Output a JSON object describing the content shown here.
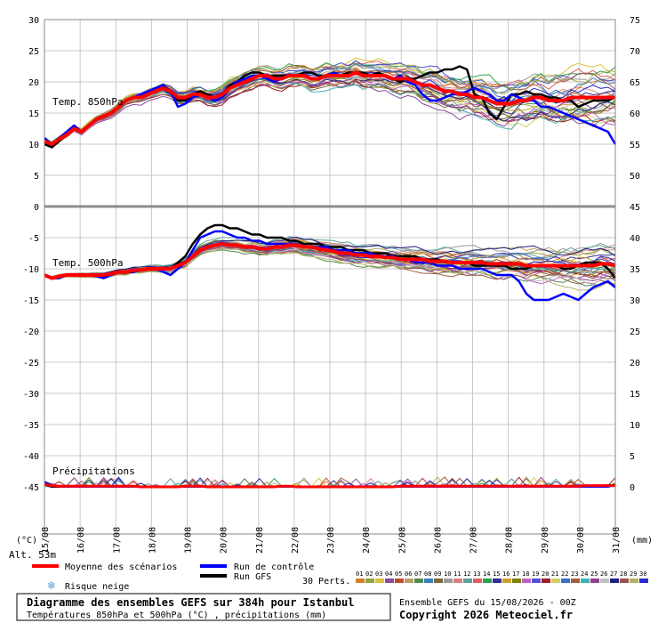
{
  "chart_data": {
    "type": "line",
    "title": "Diagramme des ensembles GEFS sur 384h pour Istanbul",
    "subtitle": "Températures 850hPa et 500hPa (°C) , précipitations (mm)",
    "run_info": "Ensemble GEFS du 15/08/2026 - 00Z",
    "copyright": "Copyright 2026 Meteociel.fr",
    "altitude_label": "Alt. 53m",
    "left_unit": "(°C)",
    "right_unit": "(mm)",
    "x_tick_labels": [
      "15/08",
      "16/08",
      "17/08",
      "18/08",
      "19/08",
      "20/08",
      "21/08",
      "22/08",
      "23/08",
      "24/08",
      "25/08",
      "26/08",
      "27/08",
      "28/08",
      "29/08",
      "30/08",
      "31/08"
    ],
    "left_ticks": [
      30,
      25,
      20,
      15,
      10,
      5,
      0,
      -5,
      -10,
      -15,
      -20,
      -25,
      -30,
      -35,
      -40,
      -45
    ],
    "right_ticks": [
      75,
      70,
      65,
      60,
      55,
      50,
      45,
      40,
      35,
      30,
      25,
      20,
      15,
      10,
      5,
      0
    ],
    "panels": {
      "t850": {
        "label": "Temp. 850hPa",
        "ylim": [
          0,
          30
        ]
      },
      "t500": {
        "label": "Temp. 500hPa",
        "ylim": [
          -50,
          0
        ]
      },
      "precip": {
        "label": "Précipitations",
        "ylim": [
          0,
          10
        ]
      }
    },
    "legend": {
      "mean": "Moyenne des scénarios",
      "control": "Run de contrôle",
      "gfs": "Run GFS",
      "snow": "Risque neige",
      "perts": "30 Perts."
    },
    "pert_labels": [
      "01",
      "02",
      "03",
      "04",
      "05",
      "06",
      "07",
      "08",
      "09",
      "10",
      "11",
      "12",
      "13",
      "14",
      "15",
      "16",
      "17",
      "18",
      "19",
      "20",
      "21",
      "22",
      "23",
      "24",
      "25",
      "26",
      "27",
      "28",
      "29",
      "30"
    ],
    "pert_colors": [
      "#d67f2a",
      "#8fa63c",
      "#d9c23a",
      "#8a4a9e",
      "#c24b2b",
      "#b8a062",
      "#4f8a55",
      "#3a7fbf",
      "#7a6a3a",
      "#9c9c9c",
      "#d98080",
      "#5fa0a0",
      "#e06060",
      "#30a050",
      "#303090",
      "#c8a030",
      "#808000",
      "#c060c0",
      "#5050d0",
      "#a02020",
      "#d0d060",
      "#3c6ec8",
      "#a06040",
      "#40b0b0",
      "#904090",
      "#c0c0c0",
      "#202080",
      "#a05050",
      "#b0b060",
      "#2a2ad0"
    ],
    "colors": {
      "mean": "#ff0000",
      "control": "#0000ff",
      "gfs": "#000000"
    },
    "series": {
      "t850_mean": [
        10.5,
        10,
        10.8,
        11.5,
        12.5,
        12,
        13,
        14,
        14.5,
        15,
        16,
        17,
        17.5,
        17.5,
        18,
        18.5,
        19,
        18.5,
        17.5,
        17.5,
        18,
        18,
        17.5,
        17.5,
        18,
        19,
        19.5,
        20,
        20.5,
        21,
        21,
        20.5,
        20.5,
        21,
        21,
        21,
        20.5,
        20.5,
        21,
        21,
        21,
        21,
        21.5,
        21,
        21,
        21,
        21,
        20.5,
        20.5,
        20.5,
        20,
        19.5,
        19.5,
        19,
        18.5,
        18.5,
        18,
        18,
        17.5,
        17.5,
        17,
        16.5,
        16.5,
        16.5,
        17,
        17,
        17.5,
        17.5,
        17,
        17,
        17,
        17.5,
        17.5,
        17.5,
        17.5,
        17.5,
        17.5,
        17.5
      ],
      "t850_control": [
        11,
        10,
        11,
        12,
        13,
        12,
        13,
        14,
        14.5,
        15,
        16,
        17,
        17.5,
        18,
        18.5,
        19,
        19.5,
        18.5,
        16,
        16.5,
        17.5,
        18,
        17.5,
        17,
        17.5,
        19,
        20,
        20.5,
        21,
        21,
        20.5,
        20,
        20.5,
        21,
        21,
        21,
        20.5,
        20.5,
        21,
        21.5,
        21,
        21,
        21.5,
        21,
        21,
        21,
        21,
        20.5,
        21,
        20,
        19.5,
        18,
        17,
        17,
        17.5,
        18,
        18,
        18.5,
        19,
        18.5,
        18,
        17,
        17,
        18,
        17.5,
        17,
        17,
        16,
        16,
        15.5,
        15,
        14.5,
        14,
        13.5,
        13,
        12.5,
        12,
        10
      ],
      "t850_gfs": [
        10,
        9.5,
        10.5,
        11.5,
        12.5,
        12,
        13,
        14,
        14.5,
        15,
        16,
        17,
        17.5,
        18,
        18.5,
        19,
        19.5,
        18.5,
        17,
        17,
        18,
        18.5,
        18,
        17.5,
        18,
        19.5,
        20,
        21,
        21.5,
        21.5,
        21,
        21,
        21,
        21,
        21,
        21.5,
        21.5,
        21,
        21,
        21,
        21,
        21.5,
        21.5,
        21.5,
        21,
        21.5,
        21,
        20.5,
        20,
        20.5,
        20.5,
        21,
        21.5,
        21.5,
        22,
        22,
        22.5,
        22,
        18,
        17.5,
        15,
        14,
        16,
        18,
        18,
        18.5,
        18,
        18,
        17.5,
        17.5,
        17,
        17,
        16,
        16.5,
        17,
        17,
        17,
        17.5
      ],
      "t500_mean": [
        -11,
        -11.5,
        -11.2,
        -11,
        -11,
        -11,
        -11,
        -11,
        -11,
        -10.8,
        -10.5,
        -10.5,
        -10.2,
        -10.2,
        -10,
        -10,
        -10,
        -10,
        -9.5,
        -9,
        -8,
        -7,
        -6.5,
        -6.2,
        -6,
        -6.2,
        -6.2,
        -6.5,
        -6.5,
        -6.8,
        -6.8,
        -6.5,
        -6.5,
        -6.2,
        -6.2,
        -6.5,
        -6.5,
        -6.8,
        -7,
        -7.2,
        -7.5,
        -7.5,
        -7.8,
        -7.8,
        -8,
        -8,
        -8.2,
        -8.2,
        -8.5,
        -8.5,
        -8.5,
        -8.5,
        -8.8,
        -8.8,
        -8.8,
        -9,
        -9,
        -9,
        -9,
        -9,
        -9.2,
        -9.2,
        -9.2,
        -9.2,
        -9.2,
        -9.5,
        -9.5,
        -9.5,
        -9.5,
        -9.5,
        -9.5,
        -9.5,
        -9.5,
        -9.5,
        -9.5,
        -9.2,
        -9.2,
        -9.5
      ],
      "t500_control": [
        -11,
        -11.5,
        -11.5,
        -11,
        -11,
        -11,
        -11,
        -11.2,
        -11.5,
        -11,
        -10.5,
        -10.5,
        -10.5,
        -10.2,
        -10,
        -10,
        -10.5,
        -11,
        -10,
        -9,
        -7,
        -5,
        -4.5,
        -4,
        -4,
        -4.5,
        -5,
        -5,
        -5.5,
        -5.5,
        -6,
        -6,
        -6,
        -6,
        -6,
        -6.5,
        -6.5,
        -6.5,
        -6.5,
        -7,
        -7,
        -7,
        -7.5,
        -7.5,
        -7.5,
        -8,
        -8,
        -8,
        -8.5,
        -8.5,
        -9,
        -9,
        -9,
        -9.5,
        -9.5,
        -9.5,
        -10,
        -10,
        -10,
        -10,
        -10.5,
        -11,
        -11,
        -11,
        -12,
        -14,
        -15,
        -15,
        -15,
        -14.5,
        -14,
        -14.5,
        -15,
        -14,
        -13,
        -12.5,
        -12,
        -13
      ],
      "t500_gfs": [
        -11,
        -11.5,
        -11.5,
        -11,
        -11,
        -11,
        -11,
        -11,
        -11.5,
        -11,
        -10.5,
        -10.5,
        -10.5,
        -10.2,
        -10,
        -10,
        -10,
        -10,
        -9,
        -8,
        -6,
        -4.5,
        -3.5,
        -3,
        -3,
        -3.5,
        -3.5,
        -4,
        -4.5,
        -4.5,
        -5,
        -5,
        -5,
        -5.5,
        -5.5,
        -6,
        -6,
        -6,
        -6.5,
        -6.5,
        -6.5,
        -7,
        -7,
        -7,
        -7.5,
        -7.5,
        -7.5,
        -8,
        -8,
        -8,
        -8,
        -8.5,
        -8.5,
        -8.5,
        -9,
        -9,
        -9,
        -9,
        -9.5,
        -9.5,
        -9.5,
        -9.5,
        -9.5,
        -10,
        -10,
        -10,
        -9.5,
        -9.5,
        -9.5,
        -9.5,
        -10,
        -10,
        -9.5,
        -9,
        -9,
        -9,
        -10,
        -11.5
      ],
      "precip_mean": [
        0.4,
        0.2,
        0.1,
        0.1,
        0.1,
        0.1,
        0.1,
        0.1,
        0.1,
        0.1,
        0.1,
        0.1,
        0.1,
        0,
        0,
        0,
        0,
        0,
        0,
        0.1,
        0.1,
        0.1,
        0,
        0,
        0,
        0,
        0,
        0,
        0,
        0,
        0,
        0,
        0.1,
        0.1,
        0,
        0,
        0,
        0,
        0,
        0,
        0,
        0,
        0,
        0,
        0,
        0,
        0,
        0,
        0.1,
        0.1,
        0.1,
        0.1,
        0.1,
        0.1,
        0.1,
        0.1,
        0.1,
        0.1,
        0.1,
        0.1,
        0.1,
        0.1,
        0.1,
        0.1,
        0.1,
        0.1,
        0.1,
        0.1,
        0.1,
        0.1,
        0.1,
        0.1,
        0.1,
        0.2,
        0.2,
        0.2,
        0.2,
        0.2
      ],
      "precip_control": [
        0.8,
        0.3,
        0.1,
        0,
        0,
        0,
        0,
        0,
        0,
        0,
        0,
        0,
        0,
        0,
        0,
        0,
        0,
        0,
        0,
        0,
        0,
        0,
        0,
        0,
        0,
        0,
        0,
        0,
        0,
        0,
        0,
        0,
        0,
        0,
        0,
        0,
        0,
        0,
        0,
        0,
        0,
        0,
        0,
        0,
        0,
        0,
        0,
        0,
        0,
        0,
        0,
        0,
        0,
        0,
        0,
        0,
        0,
        0,
        0,
        0,
        0,
        0,
        0,
        0,
        0,
        0,
        0,
        0,
        0,
        0,
        0,
        0,
        0,
        0,
        0,
        0,
        0,
        0.3
      ],
      "precip_gfs": [
        0.3,
        0,
        0,
        0,
        0,
        0,
        0,
        0,
        0,
        0,
        0,
        0,
        0,
        0,
        0,
        0,
        0,
        0,
        0,
        0,
        0,
        0,
        0,
        0,
        0,
        0,
        0,
        0,
        0,
        0,
        0,
        0,
        0,
        0,
        0,
        0,
        0,
        0,
        0,
        0,
        0,
        0,
        0,
        0,
        0,
        0,
        0,
        0,
        0,
        0,
        0,
        0,
        0,
        0,
        0,
        0,
        0,
        0,
        0,
        0,
        0,
        0,
        0,
        0,
        0,
        0,
        0,
        0,
        0,
        0,
        0,
        0,
        0,
        0,
        0,
        0,
        0.2,
        0.4
      ]
    }
  }
}
